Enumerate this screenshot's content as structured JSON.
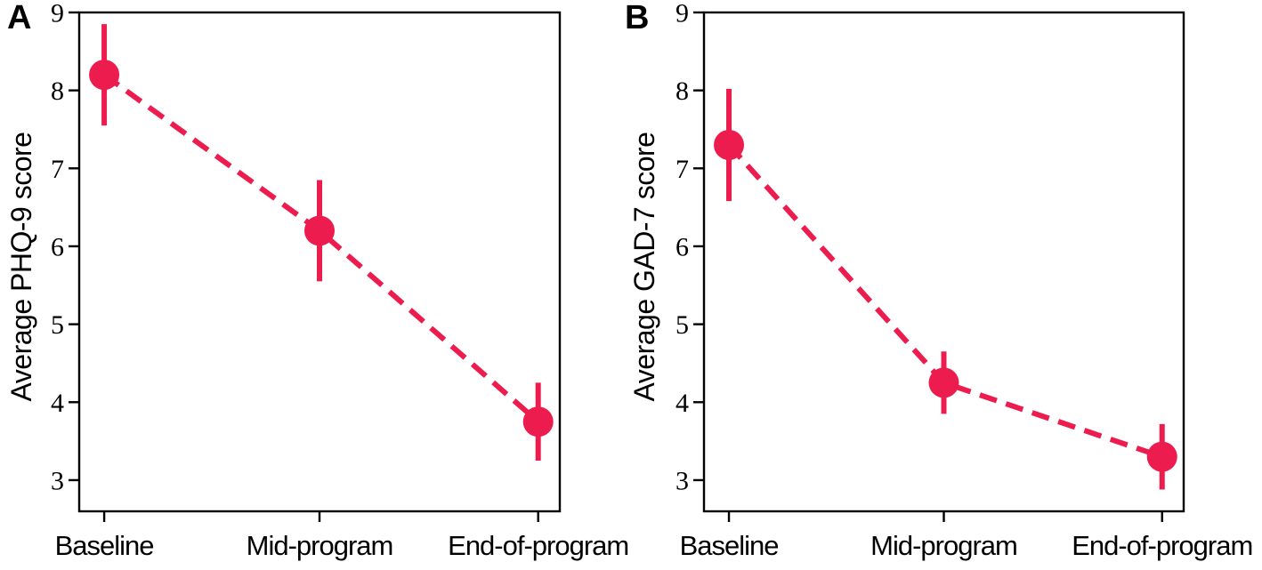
{
  "figure": {
    "background": "#ffffff",
    "accent_color": "#ED1C4F",
    "axis_color": "#000000"
  },
  "chart_data": [
    {
      "type": "line",
      "panel_label": "A",
      "title": "",
      "xlabel": "",
      "ylabel": "Average PHQ-9 score",
      "categories": [
        "Baseline",
        "Mid-program",
        "End-of-program"
      ],
      "series": [
        {
          "name": "Average PHQ-9 score",
          "values": [
            8.2,
            6.2,
            3.75
          ],
          "errors": [
            0.65,
            0.65,
            0.5
          ]
        }
      ],
      "yticks": [
        3,
        4,
        5,
        6,
        7,
        8,
        9
      ],
      "ylim": [
        2.6,
        9
      ],
      "grid": false,
      "legend": false,
      "line_style": "dashed",
      "marker": "circle",
      "color": "#ED1C4F"
    },
    {
      "type": "line",
      "panel_label": "B",
      "title": "",
      "xlabel": "",
      "ylabel": "Average GAD-7 score",
      "categories": [
        "Baseline",
        "Mid-program",
        "End-of-program"
      ],
      "series": [
        {
          "name": "Average GAD-7 score",
          "values": [
            7.3,
            4.25,
            3.3
          ],
          "errors": [
            0.72,
            0.4,
            0.42
          ]
        }
      ],
      "yticks": [
        3,
        4,
        5,
        6,
        7,
        8,
        9
      ],
      "ylim": [
        2.6,
        9
      ],
      "grid": false,
      "legend": false,
      "line_style": "dashed",
      "marker": "circle",
      "color": "#ED1C4F"
    }
  ]
}
